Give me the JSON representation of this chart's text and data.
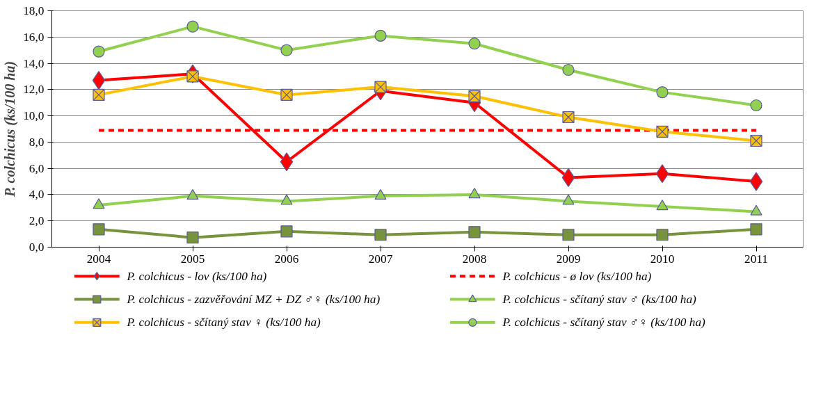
{
  "chart_data": {
    "type": "line",
    "ylabel": "P. colchicus (ks/100 ha)",
    "categories": [
      "2004",
      "2005",
      "2006",
      "2007",
      "2008",
      "2009",
      "2010",
      "2011"
    ],
    "ylim": [
      0,
      18
    ],
    "yticks": [
      {
        "value": 0,
        "label": "0,0"
      },
      {
        "value": 2,
        "label": "2,0"
      },
      {
        "value": 4,
        "label": "4,0"
      },
      {
        "value": 6,
        "label": "6,0"
      },
      {
        "value": 8,
        "label": "8,0"
      },
      {
        "value": 10,
        "label": "10,0"
      },
      {
        "value": 12,
        "label": "12,0"
      },
      {
        "value": 14,
        "label": "14,0"
      },
      {
        "value": 16,
        "label": "16,0"
      },
      {
        "value": 18,
        "label": "18,0"
      }
    ],
    "grid": "y",
    "legend": "bottom",
    "series": [
      {
        "name": "P. colchicus - lov (ks/100 ha)",
        "color": "#ff0000",
        "marker": "diamond",
        "line_style": "solid",
        "values": [
          12.7,
          13.2,
          6.5,
          11.9,
          11.0,
          5.3,
          5.6,
          5.0
        ]
      },
      {
        "name": "P. colchicus - ø lov (ks/100 ha)",
        "color": "#ff0000",
        "marker": "none",
        "line_style": "dashed",
        "values": [
          8.9,
          8.9,
          8.9,
          8.9,
          8.9,
          8.9,
          8.9,
          8.9
        ]
      },
      {
        "name": "P. colchicus - zazvěřování MZ + DZ ♂♀ (ks/100 ha)",
        "color": "#77933c",
        "marker": "square",
        "line_style": "solid",
        "values": [
          1.36,
          0.73,
          1.2,
          0.94,
          1.15,
          0.94,
          0.94,
          1.36
        ]
      },
      {
        "name": "P. colchicus - sčítaný stav ♂ (ks/100 ha)",
        "color": "#92d050",
        "marker": "triangle",
        "line_style": "solid",
        "values": [
          3.2,
          3.9,
          3.5,
          3.9,
          4.0,
          3.5,
          3.1,
          2.7
        ]
      },
      {
        "name": "P. colchicus - sčítaný stav ♀ (ks/100 ha)",
        "color": "#ffc000",
        "marker": "cross",
        "line_style": "solid",
        "values": [
          11.6,
          13.0,
          11.6,
          12.2,
          11.5,
          9.9,
          8.8,
          8.1
        ]
      },
      {
        "name": "P. colchicus - sčítaný stav ♂♀ (ks/100 ha)",
        "color": "#92d050",
        "marker": "circle",
        "line_style": "solid",
        "values": [
          14.9,
          16.8,
          15.0,
          16.1,
          15.5,
          13.5,
          11.8,
          10.8
        ]
      }
    ]
  }
}
